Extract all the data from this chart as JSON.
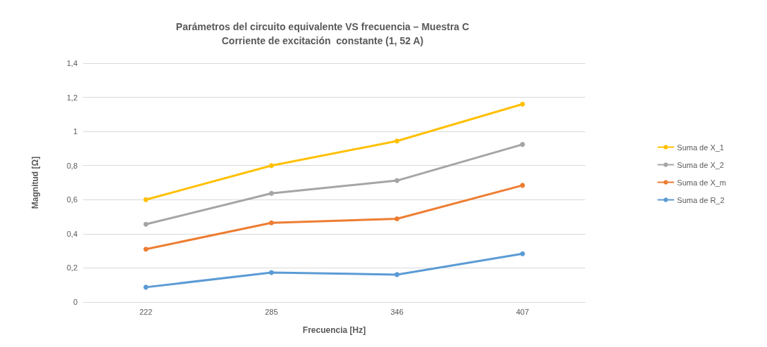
{
  "chart_data": {
    "type": "line",
    "title": "Parámetros del circuito equivalente VS frecuencia – Muestra C",
    "subtitle": "Corriente de excitación  constante (1, 52 A)",
    "xlabel": "Frecuencia [Hz]",
    "ylabel": "Magnitud [Ω]",
    "categories": [
      "222",
      "285",
      "346",
      "407"
    ],
    "series": [
      {
        "name": "Suma de X_1",
        "color": "#ffc000",
        "values": [
          0.6,
          0.8,
          0.944,
          1.16
        ]
      },
      {
        "name": "Suma de X_2",
        "color": "#a5a5a5",
        "values": [
          0.456,
          0.637,
          0.712,
          0.924
        ]
      },
      {
        "name": "Suma de X_m",
        "color": "#ed7d31",
        "values": [
          0.31,
          0.464,
          0.488,
          0.684
        ]
      },
      {
        "name": "Suma de R_2",
        "color": "#5b9bd5",
        "values": [
          0.087,
          0.173,
          0.161,
          0.283
        ]
      }
    ],
    "ylim": [
      0,
      1.4
    ],
    "yticks": [
      0,
      {
        "value": 0.2,
        "label": "0,2"
      },
      {
        "value": 0.4,
        "label": "0,4"
      },
      {
        "value": 0.6,
        "label": "0,6"
      },
      {
        "value": 0.8,
        "label": "0,8"
      },
      1,
      {
        "value": 1.2,
        "label": "1,2"
      },
      {
        "value": 1.4,
        "label": "1,4"
      }
    ],
    "grid": "y",
    "legend": "right",
    "marker": "circle",
    "line_style": "solid"
  }
}
